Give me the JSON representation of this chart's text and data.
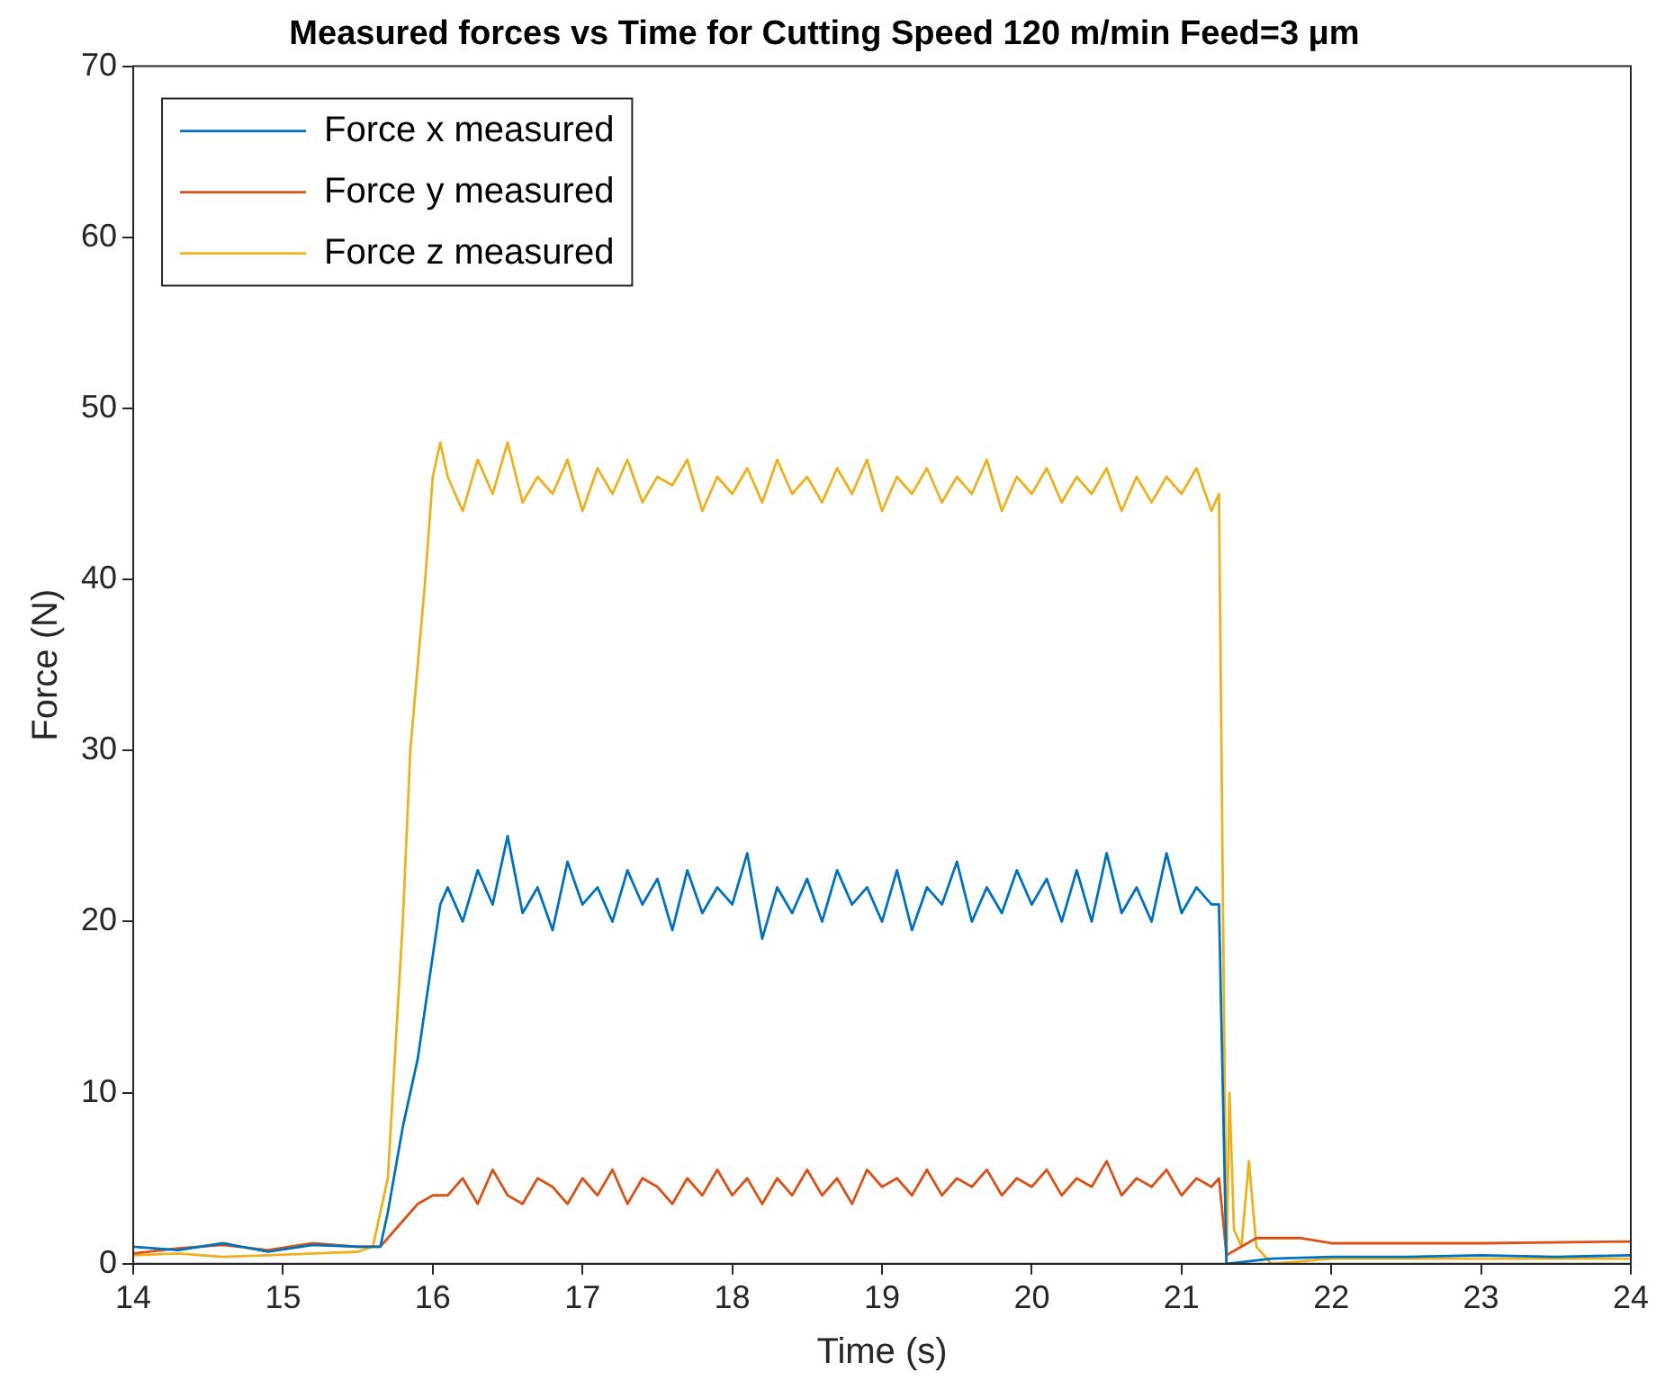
{
  "chart_data": {
    "type": "line",
    "title": "Measured forces vs Time for Cutting Speed 120 m/min Feed=3 μm",
    "xlabel": "Time (s)",
    "ylabel": "Force (N)",
    "xlim": [
      14,
      24
    ],
    "xticks": [
      14,
      15,
      16,
      17,
      18,
      19,
      20,
      21,
      22,
      23,
      24
    ],
    "ylim": [
      0,
      70
    ],
    "yticks": [
      0,
      10,
      20,
      30,
      40,
      50,
      60,
      70
    ],
    "grid": false,
    "legend": "top left",
    "marker": "none",
    "line_style": "solid",
    "series": [
      {
        "name": "Force x measured",
        "color": "#0072bd",
        "x": [
          14,
          14.3,
          14.6,
          14.9,
          15.2,
          15.5,
          15.65,
          15.7,
          15.8,
          15.9,
          15.95,
          16.0,
          16.05,
          16.1,
          16.2,
          16.3,
          16.4,
          16.5,
          16.6,
          16.7,
          16.8,
          16.9,
          17.0,
          17.1,
          17.2,
          17.3,
          17.4,
          17.5,
          17.6,
          17.7,
          17.8,
          17.9,
          18.0,
          18.1,
          18.2,
          18.3,
          18.4,
          18.5,
          18.6,
          18.7,
          18.8,
          18.9,
          19.0,
          19.1,
          19.2,
          19.3,
          19.4,
          19.5,
          19.6,
          19.7,
          19.8,
          19.9,
          20.0,
          20.1,
          20.2,
          20.3,
          20.4,
          20.5,
          20.6,
          20.7,
          20.8,
          20.9,
          21.0,
          21.1,
          21.2,
          21.25,
          21.3,
          21.6,
          22,
          22.5,
          23,
          23.5,
          24
        ],
        "values": [
          1,
          0.8,
          1.2,
          0.7,
          1.1,
          1,
          1,
          3,
          8,
          12,
          15,
          18,
          21,
          22,
          20,
          23,
          21,
          25,
          20.5,
          22,
          19.5,
          23.5,
          21,
          22,
          20,
          23,
          21,
          22.5,
          19.5,
          23,
          20.5,
          22,
          21,
          24,
          19,
          22,
          20.5,
          22.5,
          20,
          23,
          21,
          22,
          20,
          23,
          19.5,
          22,
          21,
          23.5,
          20,
          22,
          20.5,
          23,
          21,
          22.5,
          20,
          23,
          20,
          24,
          20.5,
          22,
          20,
          24,
          20.5,
          22,
          21,
          21,
          0,
          0.3,
          0.4,
          0.4,
          0.5,
          0.4,
          0.5
        ]
      },
      {
        "name": "Force y measured",
        "color": "#d95319",
        "x": [
          14,
          14.3,
          14.6,
          14.9,
          15.2,
          15.5,
          15.65,
          15.8,
          15.9,
          16.0,
          16.1,
          16.2,
          16.3,
          16.4,
          16.5,
          16.6,
          16.7,
          16.8,
          16.9,
          17.0,
          17.1,
          17.2,
          17.3,
          17.4,
          17.5,
          17.6,
          17.7,
          17.8,
          17.9,
          18.0,
          18.1,
          18.2,
          18.3,
          18.4,
          18.5,
          18.6,
          18.7,
          18.8,
          18.9,
          19.0,
          19.1,
          19.2,
          19.3,
          19.4,
          19.5,
          19.6,
          19.7,
          19.8,
          19.9,
          20.0,
          20.1,
          20.2,
          20.3,
          20.4,
          20.5,
          20.6,
          20.7,
          20.8,
          20.9,
          21.0,
          21.1,
          21.2,
          21.25,
          21.3,
          21.5,
          21.8,
          22,
          23,
          24
        ],
        "values": [
          0.6,
          0.9,
          1.1,
          0.8,
          1.2,
          1,
          1,
          2.5,
          3.5,
          4,
          4,
          5,
          3.5,
          5.5,
          4,
          3.5,
          5,
          4.5,
          3.5,
          5,
          4,
          5.5,
          3.5,
          5,
          4.5,
          3.5,
          5,
          4,
          5.5,
          4,
          5,
          3.5,
          5,
          4,
          5.5,
          4,
          5,
          3.5,
          5.5,
          4.5,
          5,
          4,
          5.5,
          4,
          5,
          4.5,
          5.5,
          4,
          5,
          4.5,
          5.5,
          4,
          5,
          4.5,
          6,
          4,
          5,
          4.5,
          5.5,
          4,
          5,
          4.5,
          5,
          0.5,
          1.5,
          1.5,
          1.2,
          1.2,
          1.3
        ]
      },
      {
        "name": "Force z measured",
        "color": "#edb120",
        "x": [
          14,
          14.3,
          14.6,
          14.9,
          15.2,
          15.5,
          15.6,
          15.7,
          15.8,
          15.85,
          15.9,
          15.95,
          16.0,
          16.05,
          16.1,
          16.2,
          16.3,
          16.4,
          16.5,
          16.6,
          16.7,
          16.8,
          16.9,
          17.0,
          17.1,
          17.2,
          17.3,
          17.4,
          17.5,
          17.6,
          17.7,
          17.8,
          17.9,
          18.0,
          18.1,
          18.2,
          18.3,
          18.4,
          18.5,
          18.6,
          18.7,
          18.8,
          18.9,
          19.0,
          19.1,
          19.2,
          19.3,
          19.4,
          19.5,
          19.6,
          19.7,
          19.8,
          19.9,
          20.0,
          20.1,
          20.2,
          20.3,
          20.4,
          20.5,
          20.6,
          20.7,
          20.8,
          20.9,
          21.0,
          21.1,
          21.2,
          21.25,
          21.3,
          21.32,
          21.35,
          21.4,
          21.45,
          21.5,
          21.6,
          22,
          23,
          24
        ],
        "values": [
          0.5,
          0.6,
          0.4,
          0.5,
          0.6,
          0.7,
          1,
          5,
          20,
          30,
          35,
          40,
          46,
          48,
          46,
          44,
          47,
          45,
          48,
          44.5,
          46,
          45,
          47,
          44,
          46.5,
          45,
          47,
          44.5,
          46,
          45.5,
          47,
          44,
          46,
          45,
          46.5,
          44.5,
          47,
          45,
          46,
          44.5,
          46.5,
          45,
          47,
          44,
          46,
          45,
          46.5,
          44.5,
          46,
          45,
          47,
          44,
          46,
          45,
          46.5,
          44.5,
          46,
          45,
          46.5,
          44,
          46,
          44.5,
          46,
          45,
          46.5,
          44,
          45,
          0,
          10,
          2,
          1,
          6,
          1,
          0,
          0.3,
          0.3,
          0.3
        ]
      }
    ]
  }
}
